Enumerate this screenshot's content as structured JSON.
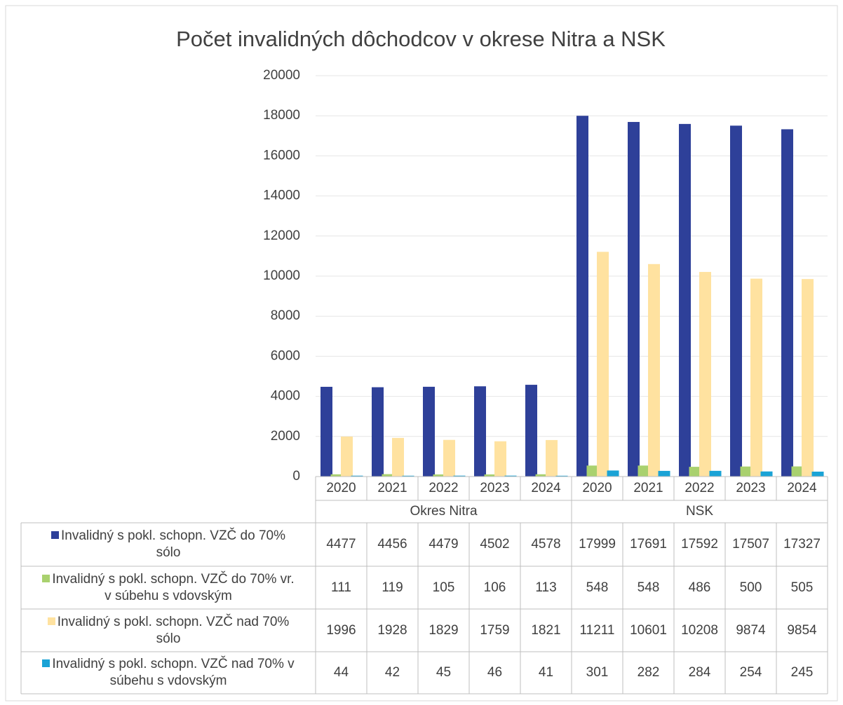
{
  "chart_data": {
    "type": "bar",
    "title": "Počet invalidných dôchodcov v okrese Nitra a NSK",
    "categories": [
      "2020",
      "2021",
      "2022",
      "2023",
      "2024",
      "2020",
      "2021",
      "2022",
      "2023",
      "2024"
    ],
    "category_groups": [
      "Okres Nitra",
      "NSK"
    ],
    "series": [
      {
        "name": "Invalidný s pokl. schopn. VZČ do 70% sólo",
        "color": "#2e4099",
        "values": [
          4477,
          4456,
          4479,
          4502,
          4578,
          17999,
          17691,
          17592,
          17507,
          17327
        ]
      },
      {
        "name": "Invalidný s pokl. schopn. VZČ do 70% vr. v súbehu s vdovským",
        "color": "#a9d16e",
        "values": [
          111,
          119,
          105,
          106,
          113,
          548,
          548,
          486,
          500,
          505
        ]
      },
      {
        "name": "Invalidný s pokl. schopn. VZČ nad 70% sólo",
        "color": "#ffe2a0",
        "values": [
          1996,
          1928,
          1829,
          1759,
          1821,
          11211,
          10601,
          10208,
          9874,
          9854
        ]
      },
      {
        "name": "Invalidný s pokl. schopn. VZČ nad 70% v súbehu s vdovským",
        "color": "#1aa3d6",
        "values": [
          44,
          42,
          45,
          46,
          41,
          301,
          282,
          284,
          254,
          245
        ]
      }
    ],
    "ylim": [
      0,
      20000
    ],
    "yticks": [
      0,
      2000,
      4000,
      6000,
      8000,
      10000,
      12000,
      14000,
      16000,
      18000,
      20000
    ],
    "grid": true,
    "data_table": true
  }
}
